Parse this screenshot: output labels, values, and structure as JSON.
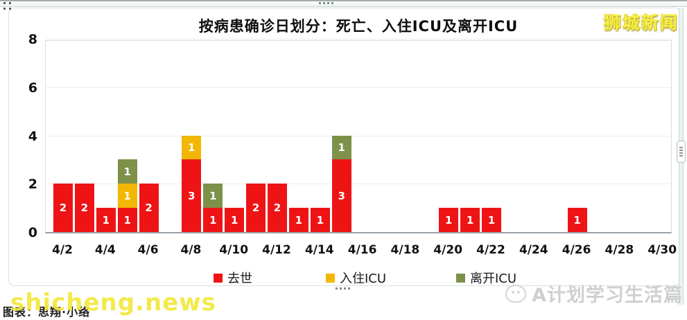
{
  "logo": {
    "text": "狮城新闻",
    "color": "#f8ef45"
  },
  "chart_data": {
    "type": "bar",
    "stacked": true,
    "title": "按病患确诊日划分：死亡、入住ICU及离开ICU",
    "categories": [
      "4/2",
      "4/3",
      "4/4",
      "4/5",
      "4/6",
      "4/7",
      "4/8",
      "4/9",
      "4/10",
      "4/11",
      "4/12",
      "4/13",
      "4/14",
      "4/15",
      "4/16",
      "4/17",
      "4/18",
      "4/19",
      "4/20",
      "4/21",
      "4/22",
      "4/23",
      "4/24",
      "4/25",
      "4/26",
      "4/27",
      "4/28",
      "4/29",
      "4/30"
    ],
    "series": [
      {
        "key": "deaths",
        "name": "去世",
        "color": "#ee1416",
        "values": [
          2,
          2,
          1,
          1,
          2,
          0,
          3,
          1,
          1,
          2,
          2,
          1,
          1,
          3,
          0,
          0,
          0,
          0,
          1,
          1,
          1,
          0,
          0,
          0,
          1,
          0,
          0,
          0,
          0
        ]
      },
      {
        "key": "icu-in",
        "name": "入住ICU",
        "color": "#f2b705",
        "values": [
          0,
          0,
          0,
          1,
          0,
          0,
          1,
          0,
          0,
          0,
          0,
          0,
          0,
          0,
          0,
          0,
          0,
          0,
          0,
          0,
          0,
          0,
          0,
          0,
          0,
          0,
          0,
          0,
          0
        ]
      },
      {
        "key": "icu-out",
        "name": "离开ICU",
        "color": "#7e9148",
        "values": [
          0,
          0,
          0,
          1,
          0,
          0,
          0,
          1,
          0,
          0,
          0,
          0,
          0,
          1,
          0,
          0,
          0,
          0,
          0,
          0,
          0,
          0,
          0,
          0,
          0,
          0,
          0,
          0,
          0
        ]
      }
    ],
    "xticks": [
      "4/2",
      "4/4",
      "4/6",
      "4/8",
      "4/10",
      "4/12",
      "4/14",
      "4/16",
      "4/18",
      "4/20",
      "4/22",
      "4/24",
      "4/26",
      "4/28",
      "4/30"
    ],
    "yticks": [
      0,
      2,
      4,
      6,
      8
    ],
    "ylim": [
      0,
      8
    ],
    "xlabel": "",
    "ylabel": "",
    "grid": true,
    "legend_position": "bottom"
  },
  "footer": {
    "credit": "图表：思翔·小络",
    "watermark_left": "shicheng.news",
    "watermark_right": "A计划学习生活篇"
  }
}
